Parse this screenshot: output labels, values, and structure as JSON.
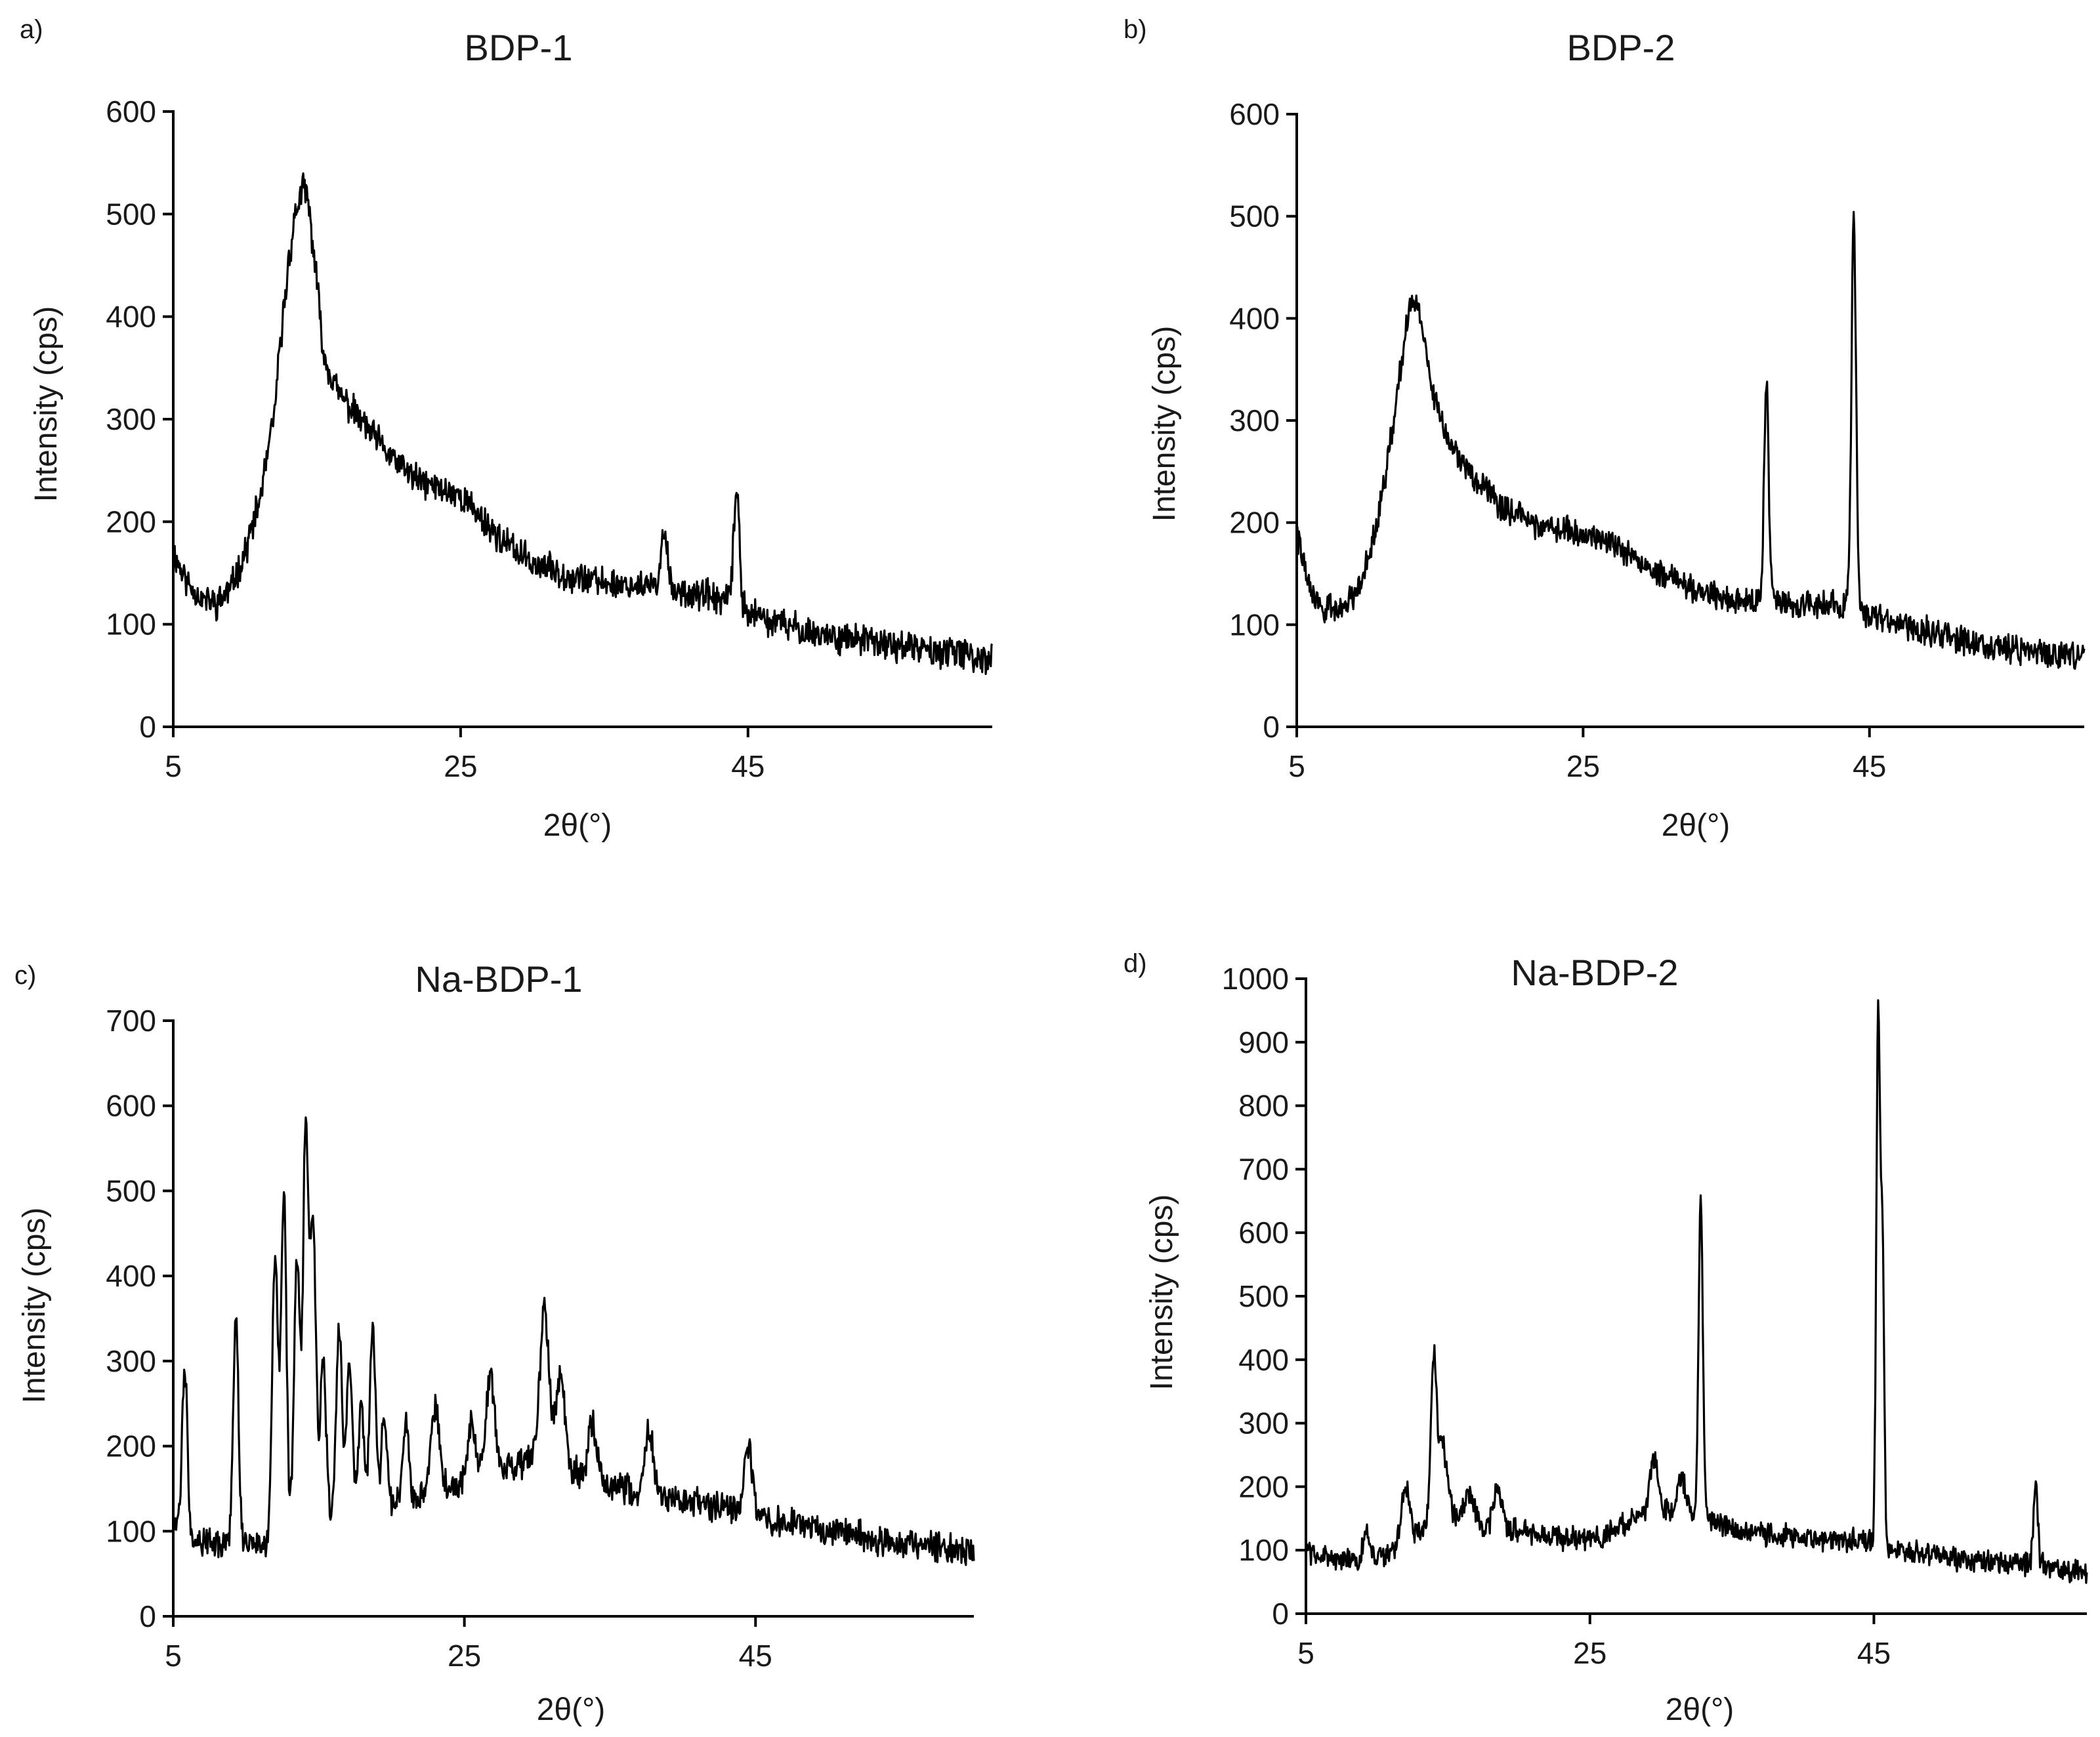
{
  "chart_data": [
    {
      "panel_label": "a)",
      "type": "line",
      "title": "BDP-1",
      "xlabel": "2θ(°)",
      "ylabel": "Intensity (cps)",
      "xlim": [
        5,
        62
      ],
      "ylim": [
        0,
        600
      ],
      "xticks": [
        "5",
        "25",
        "45"
      ],
      "yticks": [
        "0",
        "100",
        "200",
        "300",
        "400",
        "500",
        "600"
      ],
      "grid": false,
      "baseline": [
        [
          5,
          170
        ],
        [
          6,
          140
        ],
        [
          7,
          125
        ],
        [
          8,
          120
        ],
        [
          9,
          135
        ],
        [
          10,
          170
        ],
        [
          11,
          220
        ],
        [
          12,
          300
        ],
        [
          12.5,
          380
        ],
        [
          13,
          450
        ],
        [
          13.5,
          500
        ],
        [
          14,
          525
        ],
        [
          14.3,
          520
        ],
        [
          14.8,
          460
        ],
        [
          15.5,
          360
        ],
        [
          16.5,
          325
        ],
        [
          18,
          300
        ],
        [
          20,
          265
        ],
        [
          22,
          240
        ],
        [
          24,
          230
        ],
        [
          25,
          225
        ],
        [
          26,
          210
        ],
        [
          28,
          180
        ],
        [
          30,
          160
        ],
        [
          32,
          150
        ],
        [
          35,
          140
        ],
        [
          38,
          137
        ],
        [
          40,
          133
        ],
        [
          42,
          128
        ],
        [
          44,
          120
        ],
        [
          46,
          105
        ],
        [
          50,
          90
        ],
        [
          55,
          80
        ],
        [
          60,
          70
        ],
        [
          62,
          65
        ]
      ],
      "peaks": [
        {
          "x": 39.2,
          "y": 195,
          "w": 0.2
        },
        {
          "x": 44.2,
          "y": 230,
          "w": 0.2
        }
      ],
      "noise": 12,
      "seed": 11
    },
    {
      "panel_label": "b)",
      "type": "line",
      "title": "BDP-2",
      "xlabel": "2θ(°)",
      "ylabel": "Intensity (cps)",
      "xlim": [
        5,
        60
      ],
      "ylim": [
        0,
        600
      ],
      "xticks": [
        "5",
        "25",
        "45"
      ],
      "yticks": [
        "0",
        "100",
        "200",
        "300",
        "400",
        "500",
        "600"
      ],
      "grid": false,
      "baseline": [
        [
          5,
          190
        ],
        [
          6,
          130
        ],
        [
          7,
          115
        ],
        [
          8,
          115
        ],
        [
          9,
          130
        ],
        [
          10,
          165
        ],
        [
          11,
          230
        ],
        [
          12,
          320
        ],
        [
          12.6,
          390
        ],
        [
          13.2,
          420
        ],
        [
          13.7,
          400
        ],
        [
          14.5,
          330
        ],
        [
          15.5,
          280
        ],
        [
          17,
          250
        ],
        [
          19,
          220
        ],
        [
          21,
          200
        ],
        [
          23,
          195
        ],
        [
          25,
          190
        ],
        [
          27,
          180
        ],
        [
          29,
          160
        ],
        [
          32,
          140
        ],
        [
          35,
          125
        ],
        [
          38,
          122
        ],
        [
          40,
          120
        ],
        [
          42,
          120
        ],
        [
          44,
          118
        ],
        [
          46,
          105
        ],
        [
          50,
          90
        ],
        [
          55,
          75
        ],
        [
          60,
          70
        ]
      ],
      "peaks": [
        {
          "x": 37.8,
          "y": 335,
          "w": 0.16
        },
        {
          "x": 43.9,
          "y": 500,
          "w": 0.16
        }
      ],
      "noise": 11,
      "seed": 22
    },
    {
      "panel_label": "c)",
      "type": "line",
      "title": "Na-BDP-1",
      "xlabel": "2θ(°)",
      "ylabel": "Intensity (cps)",
      "xlim": [
        5,
        60
      ],
      "ylim": [
        0,
        700
      ],
      "xticks": [
        "5",
        "25",
        "45"
      ],
      "yticks": [
        "0",
        "100",
        "200",
        "300",
        "400",
        "500",
        "600",
        "700"
      ],
      "grid": false,
      "baseline": [
        [
          5,
          110
        ],
        [
          6,
          95
        ],
        [
          8,
          85
        ],
        [
          10,
          85
        ],
        [
          12,
          90
        ],
        [
          14,
          100
        ],
        [
          16,
          110
        ],
        [
          18,
          120
        ],
        [
          20,
          130
        ],
        [
          22,
          140
        ],
        [
          24,
          150
        ],
        [
          26,
          165
        ],
        [
          28,
          175
        ],
        [
          30,
          185
        ],
        [
          32,
          175
        ],
        [
          34,
          160
        ],
        [
          36,
          150
        ],
        [
          38,
          140
        ],
        [
          40,
          135
        ],
        [
          42,
          130
        ],
        [
          44,
          125
        ],
        [
          46,
          115
        ],
        [
          50,
          100
        ],
        [
          55,
          85
        ],
        [
          60,
          75
        ]
      ],
      "peaks": [
        {
          "x": 5.8,
          "y": 295,
          "w": 0.18
        },
        {
          "x": 9.3,
          "y": 355,
          "w": 0.18
        },
        {
          "x": 12.0,
          "y": 430,
          "w": 0.2
        },
        {
          "x": 12.6,
          "y": 495,
          "w": 0.18
        },
        {
          "x": 13.5,
          "y": 420,
          "w": 0.2
        },
        {
          "x": 14.1,
          "y": 570,
          "w": 0.18
        },
        {
          "x": 14.6,
          "y": 460,
          "w": 0.2
        },
        {
          "x": 15.3,
          "y": 300,
          "w": 0.2
        },
        {
          "x": 16.4,
          "y": 335,
          "w": 0.2
        },
        {
          "x": 17.1,
          "y": 295,
          "w": 0.2
        },
        {
          "x": 17.9,
          "y": 250,
          "w": 0.2
        },
        {
          "x": 18.7,
          "y": 335,
          "w": 0.2
        },
        {
          "x": 19.5,
          "y": 240,
          "w": 0.2
        },
        {
          "x": 21.0,
          "y": 230,
          "w": 0.2
        },
        {
          "x": 23.0,
          "y": 245,
          "w": 0.3
        },
        {
          "x": 25.5,
          "y": 230,
          "w": 0.25
        },
        {
          "x": 26.8,
          "y": 280,
          "w": 0.3
        },
        {
          "x": 30.5,
          "y": 365,
          "w": 0.3
        },
        {
          "x": 31.6,
          "y": 290,
          "w": 0.3
        },
        {
          "x": 33.8,
          "y": 225,
          "w": 0.3
        },
        {
          "x": 37.7,
          "y": 220,
          "w": 0.3
        },
        {
          "x": 44.5,
          "y": 195,
          "w": 0.3
        }
      ],
      "noise": 14,
      "seed": 33
    },
    {
      "panel_label": "d)",
      "type": "line",
      "title": "Na-BDP-2",
      "xlabel": "2θ(°)",
      "ylabel": "Intensity (cps)",
      "xlim": [
        5,
        60
      ],
      "ylim": [
        0,
        1000
      ],
      "xticks": [
        "5",
        "25",
        "45"
      ],
      "yticks": [
        "0",
        "100",
        "200",
        "300",
        "400",
        "500",
        "600",
        "700",
        "800",
        "900",
        "1000"
      ],
      "grid": false,
      "baseline": [
        [
          5,
          100
        ],
        [
          8,
          80
        ],
        [
          10,
          85
        ],
        [
          12,
          110
        ],
        [
          14,
          150
        ],
        [
          15,
          170
        ],
        [
          16,
          150
        ],
        [
          18,
          135
        ],
        [
          20,
          130
        ],
        [
          22,
          120
        ],
        [
          24,
          118
        ],
        [
          26,
          120
        ],
        [
          28,
          150
        ],
        [
          30,
          165
        ],
        [
          32,
          160
        ],
        [
          34,
          140
        ],
        [
          36,
          130
        ],
        [
          38,
          125
        ],
        [
          40,
          120
        ],
        [
          42,
          118
        ],
        [
          44,
          115
        ],
        [
          46,
          105
        ],
        [
          50,
          90
        ],
        [
          55,
          80
        ],
        [
          60,
          65
        ]
      ],
      "peaks": [
        {
          "x": 9.3,
          "y": 130,
          "w": 0.25
        },
        {
          "x": 12.0,
          "y": 200,
          "w": 0.3
        },
        {
          "x": 14.0,
          "y": 400,
          "w": 0.2
        },
        {
          "x": 14.6,
          "y": 270,
          "w": 0.25
        },
        {
          "x": 16.5,
          "y": 190,
          "w": 0.3
        },
        {
          "x": 18.5,
          "y": 195,
          "w": 0.3
        },
        {
          "x": 29.5,
          "y": 250,
          "w": 0.25
        },
        {
          "x": 31.5,
          "y": 210,
          "w": 0.3
        },
        {
          "x": 32.8,
          "y": 655,
          "w": 0.15
        },
        {
          "x": 45.3,
          "y": 940,
          "w": 0.13
        },
        {
          "x": 45.6,
          "y": 590,
          "w": 0.12
        },
        {
          "x": 56.4,
          "y": 210,
          "w": 0.15
        }
      ],
      "noise": 15,
      "seed": 44
    }
  ]
}
